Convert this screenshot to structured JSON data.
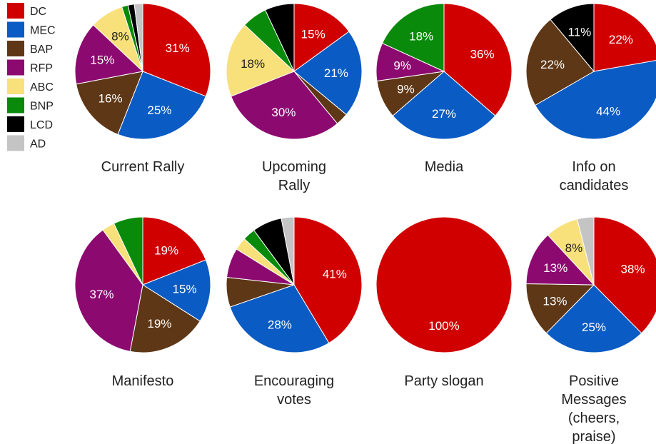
{
  "chart_data": {
    "type": "pie",
    "legend": {
      "placement": "top-left",
      "items": [
        {
          "name": "DC",
          "color": "#d00000"
        },
        {
          "name": "MEC",
          "color": "#0a5bc4"
        },
        {
          "name": "BAP",
          "color": "#5e3716"
        },
        {
          "name": "RFP",
          "color": "#8c0a70"
        },
        {
          "name": "ABC",
          "color": "#f8e07a"
        },
        {
          "name": "BNP",
          "color": "#0a8a0a"
        },
        {
          "name": "LCD",
          "color": "#000000"
        },
        {
          "name": "AD",
          "color": "#c4c4c4"
        }
      ]
    },
    "charts": [
      {
        "title_lines": [
          "Current Rally"
        ],
        "values": [
          31,
          25,
          16,
          15,
          8,
          1.5,
          1.5,
          2
        ],
        "labels": [
          "31%",
          "25%",
          "16%",
          "15%",
          "8%",
          "",
          "",
          ""
        ]
      },
      {
        "title_lines": [
          "Upcoming",
          "Rally"
        ],
        "values": [
          15,
          21,
          3,
          30,
          18,
          6,
          7,
          0
        ],
        "labels": [
          "15%",
          "21%",
          "",
          "30%",
          "18%",
          "",
          "",
          ""
        ]
      },
      {
        "title_lines": [
          "Media"
        ],
        "values": [
          36,
          27,
          9,
          9,
          0,
          18,
          0,
          0
        ],
        "labels": [
          "36%",
          "27%",
          "9%",
          "9%",
          "",
          "18%",
          "",
          ""
        ]
      },
      {
        "title_lines": [
          "Info on",
          "candidates"
        ],
        "values": [
          22,
          44,
          22,
          0,
          0,
          0,
          11,
          0
        ],
        "labels": [
          "22%",
          "44%",
          "22%",
          "",
          "",
          "",
          "11%",
          ""
        ]
      },
      {
        "title_lines": [
          "Manifesto"
        ],
        "values": [
          19,
          15,
          19,
          37,
          3,
          7,
          0,
          0
        ],
        "labels": [
          "19%",
          "15%",
          "19%",
          "37%",
          "",
          "",
          "",
          ""
        ]
      },
      {
        "title_lines": [
          "Encouraging",
          "votes"
        ],
        "values": [
          41,
          28,
          7,
          7,
          3,
          3,
          7,
          3
        ],
        "labels": [
          "41%",
          "28%",
          "",
          "",
          "",
          "",
          "",
          ""
        ]
      },
      {
        "title_lines": [
          "Party slogan"
        ],
        "values": [
          100,
          0,
          0,
          0,
          0,
          0,
          0,
          0
        ],
        "labels": [
          "100%",
          "",
          "",
          "",
          "",
          "",
          "",
          ""
        ]
      },
      {
        "title_lines": [
          "Positive",
          "Messages",
          "(cheers,",
          "praise)"
        ],
        "values": [
          38,
          25,
          13,
          13,
          8,
          0,
          0,
          4
        ],
        "labels": [
          "38%",
          "25%",
          "13%",
          "13%",
          "8%",
          "",
          "",
          ""
        ]
      }
    ]
  }
}
